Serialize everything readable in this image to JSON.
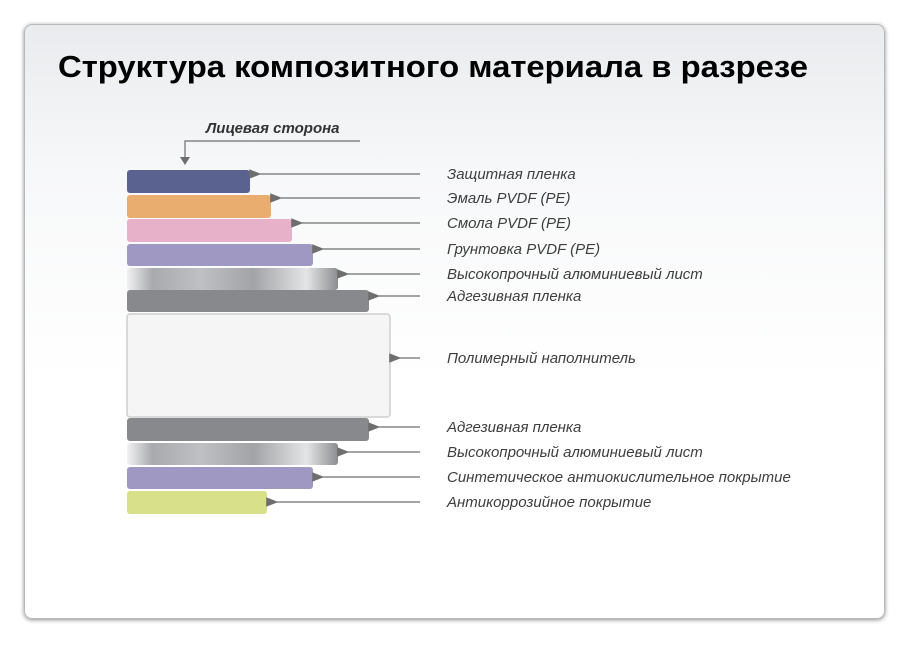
{
  "title": "Структура композитного материала в разрезе",
  "face_label": "Лицевая сторона",
  "colors": {
    "title": "#3f7cbd",
    "arrow": "#6e6e6e",
    "label": "#3e3e3e"
  },
  "layers": [
    {
      "label": "Защитная пленка",
      "color": "#5a6390",
      "fill": "solid"
    },
    {
      "label": "Эмаль PVDF (PE)",
      "color": "#e9ad70",
      "fill": "solid"
    },
    {
      "label": "Смола PVDF (PE)",
      "color": "#e7b1c9",
      "fill": "solid"
    },
    {
      "label": "Грунтовка PVDF (PE)",
      "color": "#9e98c3",
      "fill": "solid"
    },
    {
      "label": "Высокопрочный алюминиевый лист",
      "color": "#b5b6b9",
      "fill": "metal"
    },
    {
      "label": "Адгезивная пленка",
      "color": "#88898c",
      "fill": "solid"
    },
    {
      "label": "Полимерный наполнитель",
      "color": "#f5f5f5",
      "fill": "core"
    },
    {
      "label": "Адгезивная пленка",
      "color": "#88898c",
      "fill": "solid"
    },
    {
      "label": "Высокопрочный алюминиевый лист",
      "color": "#b5b6b9",
      "fill": "metal"
    },
    {
      "label": "Синтетическое антиокислительное покрытие",
      "color": "#9e98c3",
      "fill": "solid"
    },
    {
      "label": "Антикоррозийное покрытие",
      "color": "#d8e08a",
      "fill": "solid"
    }
  ]
}
